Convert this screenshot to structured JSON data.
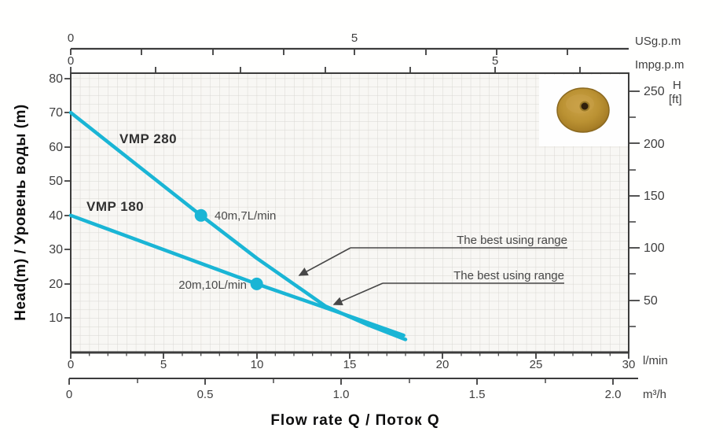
{
  "y_axis_title": "Head(m) / Уровень воды (m)",
  "x_axis_title": "Flow rate Q / Поток Q",
  "axes": {
    "us_gpm": {
      "unit": "USg.p.m",
      "tick_labels": [
        "0",
        "5"
      ]
    },
    "imp_gpm": {
      "unit": "Impg.p.m",
      "tick_labels": [
        "0",
        "5"
      ]
    },
    "head_m": {
      "tick_labels": [
        "80",
        "70",
        "60",
        "50",
        "40",
        "30",
        "20",
        "10"
      ]
    },
    "head_ft": {
      "unit_symbol": "H",
      "unit_bracket": "[ft]",
      "tick_labels": [
        "250",
        "200",
        "150",
        "100",
        "50"
      ]
    },
    "flow_lmin": {
      "unit": "l/min",
      "tick_labels": [
        "0",
        "5",
        "10",
        "15",
        "20",
        "25",
        "30"
      ]
    },
    "flow_m3h": {
      "unit": "m³/h",
      "tick_labels": [
        "0",
        "0.5",
        "1.0",
        "1.5",
        "2.0"
      ]
    }
  },
  "series_labels": {
    "vmp280": "VMP 280",
    "vmp180": "VMP 180"
  },
  "annotations": {
    "point_vmp280": "40m,7L/min",
    "point_vmp180": "20m,10L/min",
    "best_range_1": "The best using range",
    "best_range_2": "The best using range"
  },
  "colors": {
    "curve": "#1ab5d5",
    "axis": "#3c3c3c",
    "grid": "#d9d7d2",
    "plot_bg": "#f8f7f4",
    "leader": "#474747",
    "disc_gold": "#b9912f"
  },
  "chart_data": {
    "type": "line",
    "title": "",
    "xlabel": "Flow rate Q / Поток Q",
    "ylabel": "Head(m) / Уровень воды (m)",
    "x_axis_units": [
      "l/min",
      "m³/h",
      "USg.p.m",
      "Impg.p.m"
    ],
    "y_axis_units": [
      "m",
      "ft"
    ],
    "x_range_lmin": [
      0,
      30
    ],
    "y_range_m": [
      0,
      80
    ],
    "y_right_ft_ticks": [
      250,
      200,
      150,
      100,
      50
    ],
    "x_m3h_ticks": [
      0,
      0.5,
      1.0,
      1.5,
      2.0
    ],
    "grid": true,
    "series": [
      {
        "name": "VMP 280",
        "points_lmin_m": [
          [
            0,
            70
          ],
          [
            3.5,
            55
          ],
          [
            7,
            40
          ],
          [
            10,
            27.5
          ],
          [
            13.7,
            13.5
          ],
          [
            16,
            8
          ],
          [
            18,
            3.8
          ]
        ]
      },
      {
        "name": "VMP 180",
        "points_lmin_m": [
          [
            0,
            40
          ],
          [
            5,
            30
          ],
          [
            10,
            20
          ],
          [
            14,
            12.5
          ],
          [
            17.9,
            5
          ]
        ]
      }
    ],
    "markers": [
      {
        "series": "VMP 280",
        "label": "40m,7L/min",
        "lmin": 7,
        "head_m": 40
      },
      {
        "series": "VMP 180",
        "label": "20m,10L/min",
        "lmin": 10,
        "head_m": 20
      }
    ],
    "annotations": [
      "The best using range",
      "The best using range"
    ],
    "legend_position": "labels-on-curves"
  }
}
